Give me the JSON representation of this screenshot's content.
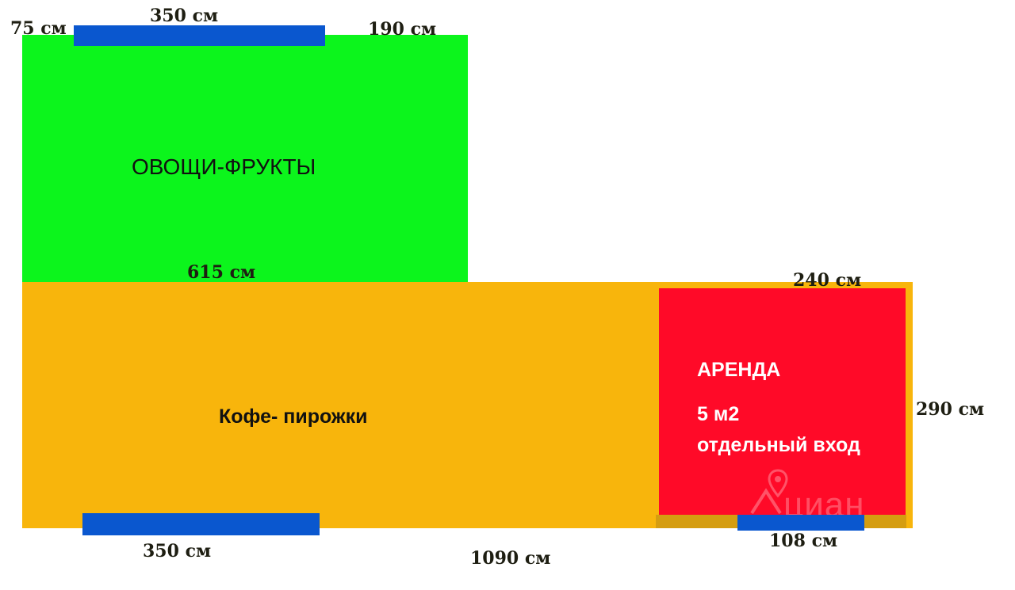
{
  "colors": {
    "veg_zone": "#0cf51c",
    "cafe_zone": "#f8b50c",
    "rent_zone": "#ff0a28",
    "rent_strip": "#d59d10",
    "door": "#0a57cf",
    "dimension_text": "#1e1e12"
  },
  "zones": {
    "veg": {
      "label": "ОВОЩИ-ФРУКТЫ"
    },
    "cafe": {
      "label": "Кофе- пирожки"
    },
    "rent": {
      "title": "АРЕНДА",
      "area": "5 м2",
      "entrance": "отдельный вход"
    }
  },
  "dimensions": {
    "top_left_offset": "75 см",
    "top_door": "350 см",
    "top_right_offset": "190 см",
    "veg_width": "615 см",
    "rent_width": "240 см",
    "right_height": "290 см",
    "bottom_door": "350 см",
    "total_width": "1090 см",
    "rent_door": "108 см"
  },
  "watermark": {
    "brand": "циан",
    "icon": "map-pin-icon"
  }
}
